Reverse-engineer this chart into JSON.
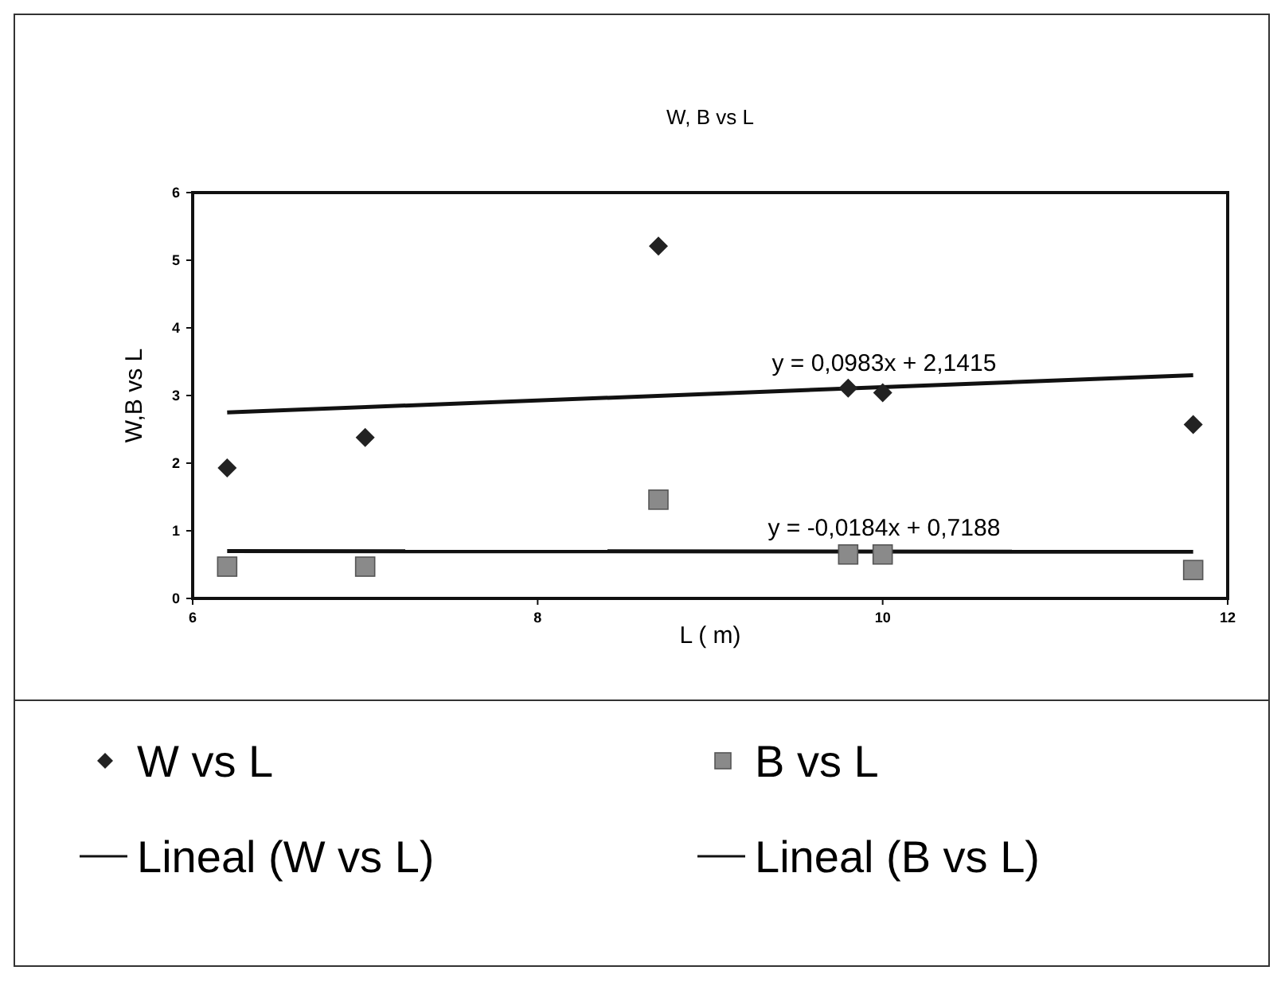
{
  "chart_data": {
    "type": "scatter",
    "title": "W, B vs L",
    "xlabel": "L ( m)",
    "ylabel": "W,B vs L",
    "xlim": [
      6,
      12
    ],
    "xticks": [
      6,
      8,
      10,
      12
    ],
    "ylim": [
      0,
      6
    ],
    "yticks": [
      0,
      1,
      2,
      3,
      4,
      5,
      6
    ],
    "grid": false,
    "legend": "bottom",
    "series": [
      {
        "name": "W vs L",
        "marker": "diamond",
        "color": "#222222",
        "x": [
          6.2,
          7,
          8.7,
          9.8,
          10,
          11.8
        ],
        "values": [
          1.93,
          2.38,
          5.21,
          3.11,
          3.04,
          2.57
        ]
      },
      {
        "name": "B vs L",
        "marker": "square",
        "color": "#8a8a8a",
        "x": [
          6.2,
          7,
          8.7,
          9.8,
          10,
          11.8
        ],
        "values": [
          0.47,
          0.47,
          1.46,
          0.65,
          0.65,
          0.42
        ]
      },
      {
        "name": "Lineal (W vs L)",
        "type": "line",
        "marker": "none",
        "color": "#111111",
        "x": [
          6.2,
          11.8
        ],
        "values": [
          2.75,
          3.3
        ]
      },
      {
        "name": "Lineal (B vs L)",
        "type": "line",
        "marker": "none",
        "color": "#111111",
        "x": [
          6.2,
          11.8
        ],
        "values": [
          0.7,
          0.69
        ]
      }
    ],
    "annotations": [
      "y = 0,0983x + 2,1415",
      "y = -0,0184x + 0,7188"
    ]
  }
}
